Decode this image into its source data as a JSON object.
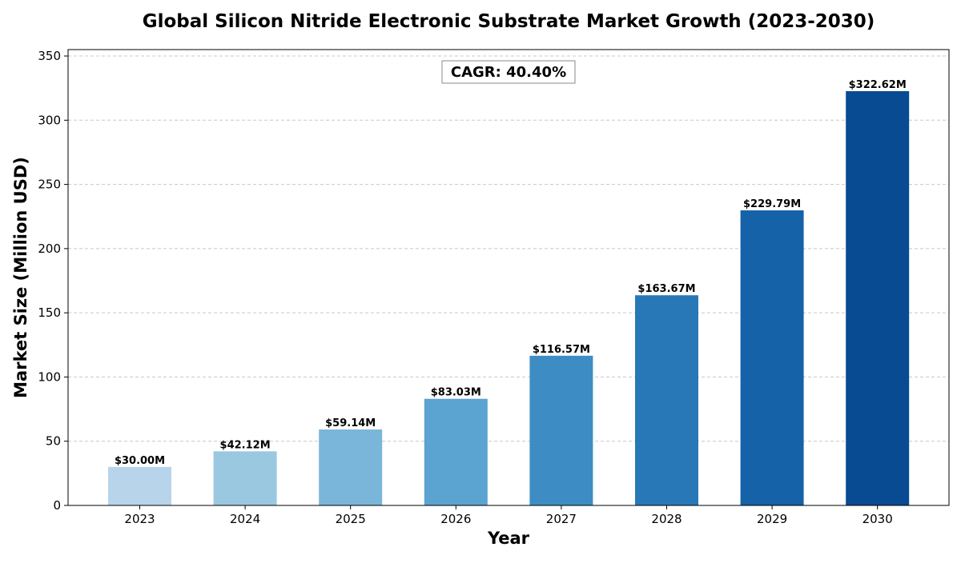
{
  "chart_data": {
    "type": "bar",
    "title": "Global Silicon Nitride Electronic Substrate Market Growth (2023-2030)",
    "xlabel": "Year",
    "ylabel": "Market Size (Million USD)",
    "categories": [
      "2023",
      "2024",
      "2025",
      "2026",
      "2027",
      "2028",
      "2029",
      "2030"
    ],
    "values": [
      30.0,
      42.12,
      59.14,
      83.03,
      116.57,
      163.67,
      229.79,
      322.62
    ],
    "value_labels": [
      "$30.00M",
      "$42.12M",
      "$59.14M",
      "$83.03M",
      "$116.57M",
      "$163.67M",
      "$229.79M",
      "$322.62M"
    ],
    "bar_colors": [
      "#b7d4ea",
      "#9ac8e0",
      "#7ab6d9",
      "#5ba3d0",
      "#3d8dc4",
      "#2878b8",
      "#1562a9",
      "#084b93"
    ],
    "ylim": [
      0,
      355
    ],
    "yticks": [
      0,
      50,
      100,
      150,
      200,
      250,
      300,
      350
    ],
    "grid": "y-dashed",
    "annotation": "CAGR: 40.40%"
  }
}
